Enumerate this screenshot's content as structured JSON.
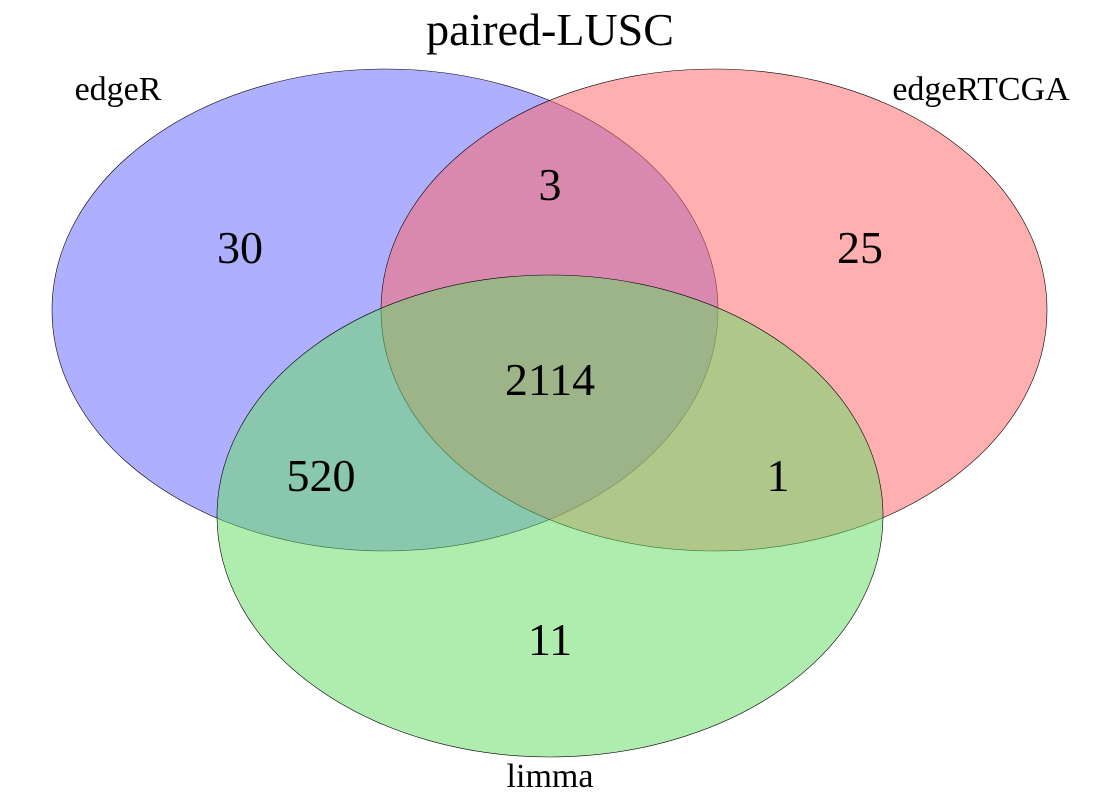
{
  "title": "paired-LUSC",
  "sets": [
    {
      "name": "edgeR",
      "color": "#6666ff"
    },
    {
      "name": "edgeRTCGA",
      "color": "#ff6666"
    },
    {
      "name": "limma",
      "color": "#66dd66"
    }
  ],
  "regions": {
    "edgeR_only": "30",
    "edgeRTCGA_only": "25",
    "limma_only": "11",
    "edgeR_edgeRTCGA": "3",
    "edgeR_limma": "520",
    "edgeRTCGA_limma": "1",
    "all_three": "2114"
  }
}
